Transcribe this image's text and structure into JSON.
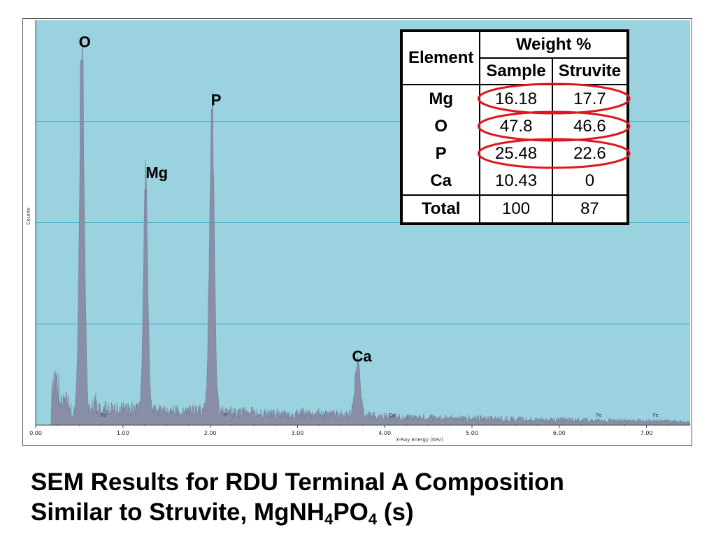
{
  "chart_data": {
    "type": "area",
    "title": "",
    "xlabel": "X-Ray Energy (KeV)",
    "ylabel": "Counts",
    "xlim": [
      0,
      7.5
    ],
    "ylim": [
      0,
      100
    ],
    "x_ticks": [
      "0.00",
      "1.00",
      "2.00",
      "3.00",
      "4.00",
      "5.00",
      "6.00",
      "7.00"
    ],
    "grid": true,
    "background": "#9ad2df",
    "series_color": "#8a8fa8",
    "peaks": [
      {
        "label": "O",
        "x": 0.53,
        "y": 93
      },
      {
        "label": "Mg",
        "x": 1.26,
        "y": 60
      },
      {
        "label": "P",
        "x": 2.02,
        "y": 78
      },
      {
        "label": "Ca",
        "x": 3.69,
        "y": 14
      }
    ],
    "small_labels": [
      {
        "label": "Fe",
        "x": 0.72
      },
      {
        "label": "P",
        "x": 2.13
      },
      {
        "label": "Ca",
        "x": 4.02
      },
      {
        "label": "Fe",
        "x": 6.4
      },
      {
        "label": "Fe",
        "x": 7.05
      }
    ]
  },
  "table": {
    "header_element": "Element",
    "header_weight": "Weight %",
    "header_sample": "Sample",
    "header_struvite": "Struvite",
    "rows": [
      {
        "element": "Mg",
        "sample": "16.18",
        "struvite": "17.7",
        "circled": true
      },
      {
        "element": "O",
        "sample": "47.8",
        "struvite": "46.6",
        "circled": true
      },
      {
        "element": "P",
        "sample": "25.48",
        "struvite": "22.6",
        "circled": true
      },
      {
        "element": "Ca",
        "sample": "10.43",
        "struvite": "0",
        "circled": false
      }
    ],
    "total": {
      "element": "Total",
      "sample": "100",
      "struvite": "87"
    },
    "circle_color": "#e0161e"
  },
  "caption": {
    "line1": "SEM Results for RDU Terminal A Composition",
    "line2_pre": "Similar to Struvite, MgNH",
    "sub1": "4",
    "line2_mid": "PO",
    "sub2": "4",
    "line2_post": " (s)"
  }
}
